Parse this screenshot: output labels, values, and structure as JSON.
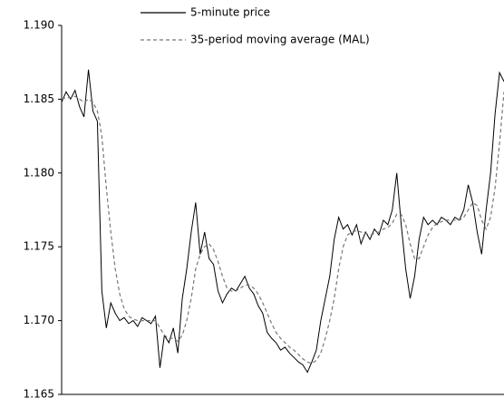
{
  "chart_data": {
    "type": "line",
    "ylim": [
      1.165,
      1.19
    ],
    "yticks": [
      {
        "value": 1.165,
        "label": "1.165"
      },
      {
        "value": 1.17,
        "label": "1.170"
      },
      1.175,
      {
        "value": 1.18,
        "label": "1.180"
      },
      1.185,
      {
        "value": 1.19,
        "label": "1.190"
      }
    ],
    "grid": false,
    "legend": "top",
    "series": [
      {
        "name": "5-minute price",
        "color": "#000000",
        "dashed": false,
        "values": [
          1.1848,
          1.1855,
          1.185,
          1.1856,
          1.1845,
          1.1838,
          1.187,
          1.1842,
          1.1835,
          1.172,
          1.1695,
          1.1712,
          1.1705,
          1.17,
          1.1702,
          1.1698,
          1.17,
          1.1696,
          1.1702,
          1.17,
          1.1698,
          1.1703,
          1.1668,
          1.169,
          1.1685,
          1.1695,
          1.1678,
          1.1715,
          1.1735,
          1.176,
          1.178,
          1.1745,
          1.176,
          1.1742,
          1.1738,
          1.172,
          1.1712,
          1.1718,
          1.1722,
          1.172,
          1.1725,
          1.173,
          1.1722,
          1.1718,
          1.171,
          1.1705,
          1.1692,
          1.1688,
          1.1685,
          1.168,
          1.1682,
          1.1678,
          1.1675,
          1.1672,
          1.167,
          1.1665,
          1.1672,
          1.168,
          1.17,
          1.1715,
          1.173,
          1.1755,
          1.177,
          1.1762,
          1.1765,
          1.1758,
          1.1765,
          1.1752,
          1.176,
          1.1755,
          1.1762,
          1.1758,
          1.1768,
          1.1765,
          1.1775,
          1.18,
          1.1765,
          1.1735,
          1.1715,
          1.173,
          1.1755,
          1.177,
          1.1765,
          1.1768,
          1.1765,
          1.177,
          1.1768,
          1.1765,
          1.177,
          1.1768,
          1.1775,
          1.1792,
          1.178,
          1.176,
          1.1745,
          1.1775,
          1.18,
          1.184,
          1.1868,
          1.1862
        ]
      },
      {
        "name": "35-period moving average (MAL)",
        "color": "#777777",
        "dashed": true,
        "values": [
          1.185,
          1.1851,
          1.1851,
          1.1852,
          1.185,
          1.1848,
          1.185,
          1.1848,
          1.1842,
          1.1825,
          1.179,
          1.176,
          1.1735,
          1.1718,
          1.1708,
          1.1703,
          1.1701,
          1.17,
          1.17,
          1.17,
          1.17,
          1.17,
          1.1695,
          1.169,
          1.1688,
          1.1688,
          1.1686,
          1.169,
          1.17,
          1.1715,
          1.1735,
          1.1745,
          1.175,
          1.1752,
          1.1748,
          1.174,
          1.173,
          1.1722,
          1.172,
          1.172,
          1.1722,
          1.1724,
          1.1724,
          1.1722,
          1.1718,
          1.1712,
          1.1705,
          1.1698,
          1.1692,
          1.1688,
          1.1685,
          1.1682,
          1.168,
          1.1677,
          1.1674,
          1.1672,
          1.1671,
          1.1673,
          1.1678,
          1.1688,
          1.17,
          1.1715,
          1.1735,
          1.175,
          1.1758,
          1.176,
          1.1761,
          1.176,
          1.1759,
          1.1758,
          1.1759,
          1.176,
          1.1762,
          1.1763,
          1.1766,
          1.1772,
          1.1772,
          1.1765,
          1.1752,
          1.1742,
          1.1742,
          1.175,
          1.1758,
          1.1763,
          1.1766,
          1.1767,
          1.1768,
          1.1768,
          1.1768,
          1.1768,
          1.177,
          1.1775,
          1.178,
          1.1778,
          1.1768,
          1.1762,
          1.177,
          1.179,
          1.182,
          1.1855
        ]
      }
    ]
  }
}
